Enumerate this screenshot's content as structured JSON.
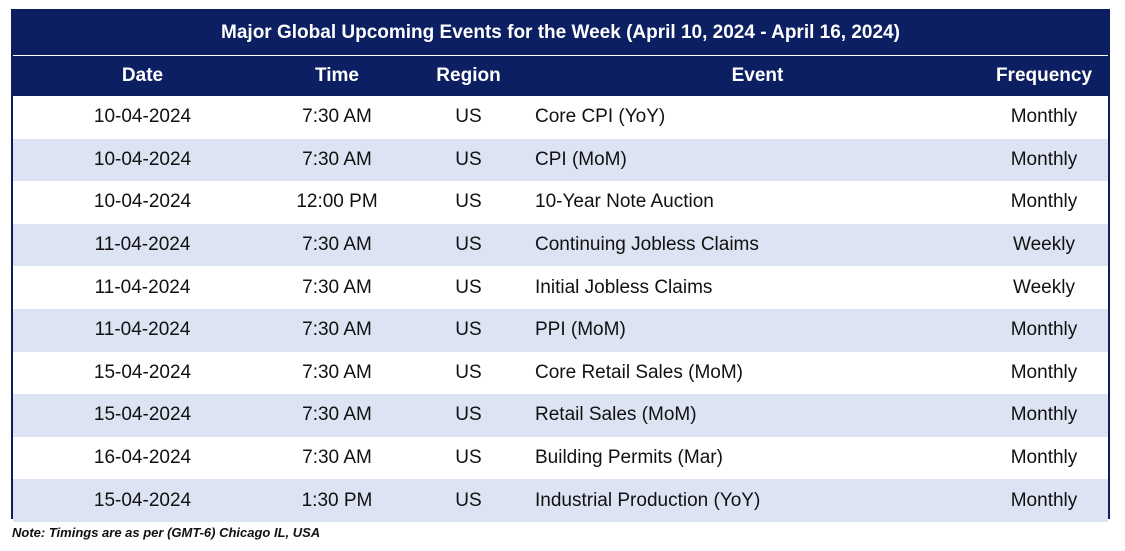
{
  "title": "Major Global Upcoming Events for the Week (April 10, 2024 - April 16, 2024)",
  "columns": {
    "date": "Date",
    "time": "Time",
    "region": "Region",
    "event": "Event",
    "frequency": "Frequency"
  },
  "rows": [
    {
      "date": "10-04-2024",
      "time": "7:30 AM",
      "region": "US",
      "event": "Core CPI (YoY)",
      "frequency": "Monthly"
    },
    {
      "date": "10-04-2024",
      "time": "7:30 AM",
      "region": "US",
      "event": "CPI (MoM)",
      "frequency": "Monthly"
    },
    {
      "date": "10-04-2024",
      "time": "12:00 PM",
      "region": "US",
      "event": "10-Year Note Auction",
      "frequency": "Monthly"
    },
    {
      "date": "11-04-2024",
      "time": "7:30 AM",
      "region": "US",
      "event": "Continuing Jobless Claims",
      "frequency": "Weekly"
    },
    {
      "date": "11-04-2024",
      "time": "7:30 AM",
      "region": "US",
      "event": "Initial Jobless Claims",
      "frequency": "Weekly"
    },
    {
      "date": "11-04-2024",
      "time": "7:30 AM",
      "region": "US",
      "event": "PPI (MoM)",
      "frequency": "Monthly"
    },
    {
      "date": "15-04-2024",
      "time": "7:30 AM",
      "region": "US",
      "event": "Core Retail Sales (MoM)",
      "frequency": "Monthly"
    },
    {
      "date": "15-04-2024",
      "time": "7:30 AM",
      "region": "US",
      "event": "Retail Sales (MoM)",
      "frequency": "Monthly"
    },
    {
      "date": "16-04-2024",
      "time": "7:30 AM",
      "region": "US",
      "event": "Building Permits (Mar)",
      "frequency": "Monthly"
    },
    {
      "date": "15-04-2024",
      "time": "1:30 PM",
      "region": "US",
      "event": "Industrial Production (YoY)",
      "frequency": "Monthly"
    }
  ],
  "note": "Note: Timings are as per (GMT-6) Chicago IL, USA",
  "colors": {
    "header_bg": "#0d1f63",
    "alt_row_bg": "#dce3f2"
  }
}
